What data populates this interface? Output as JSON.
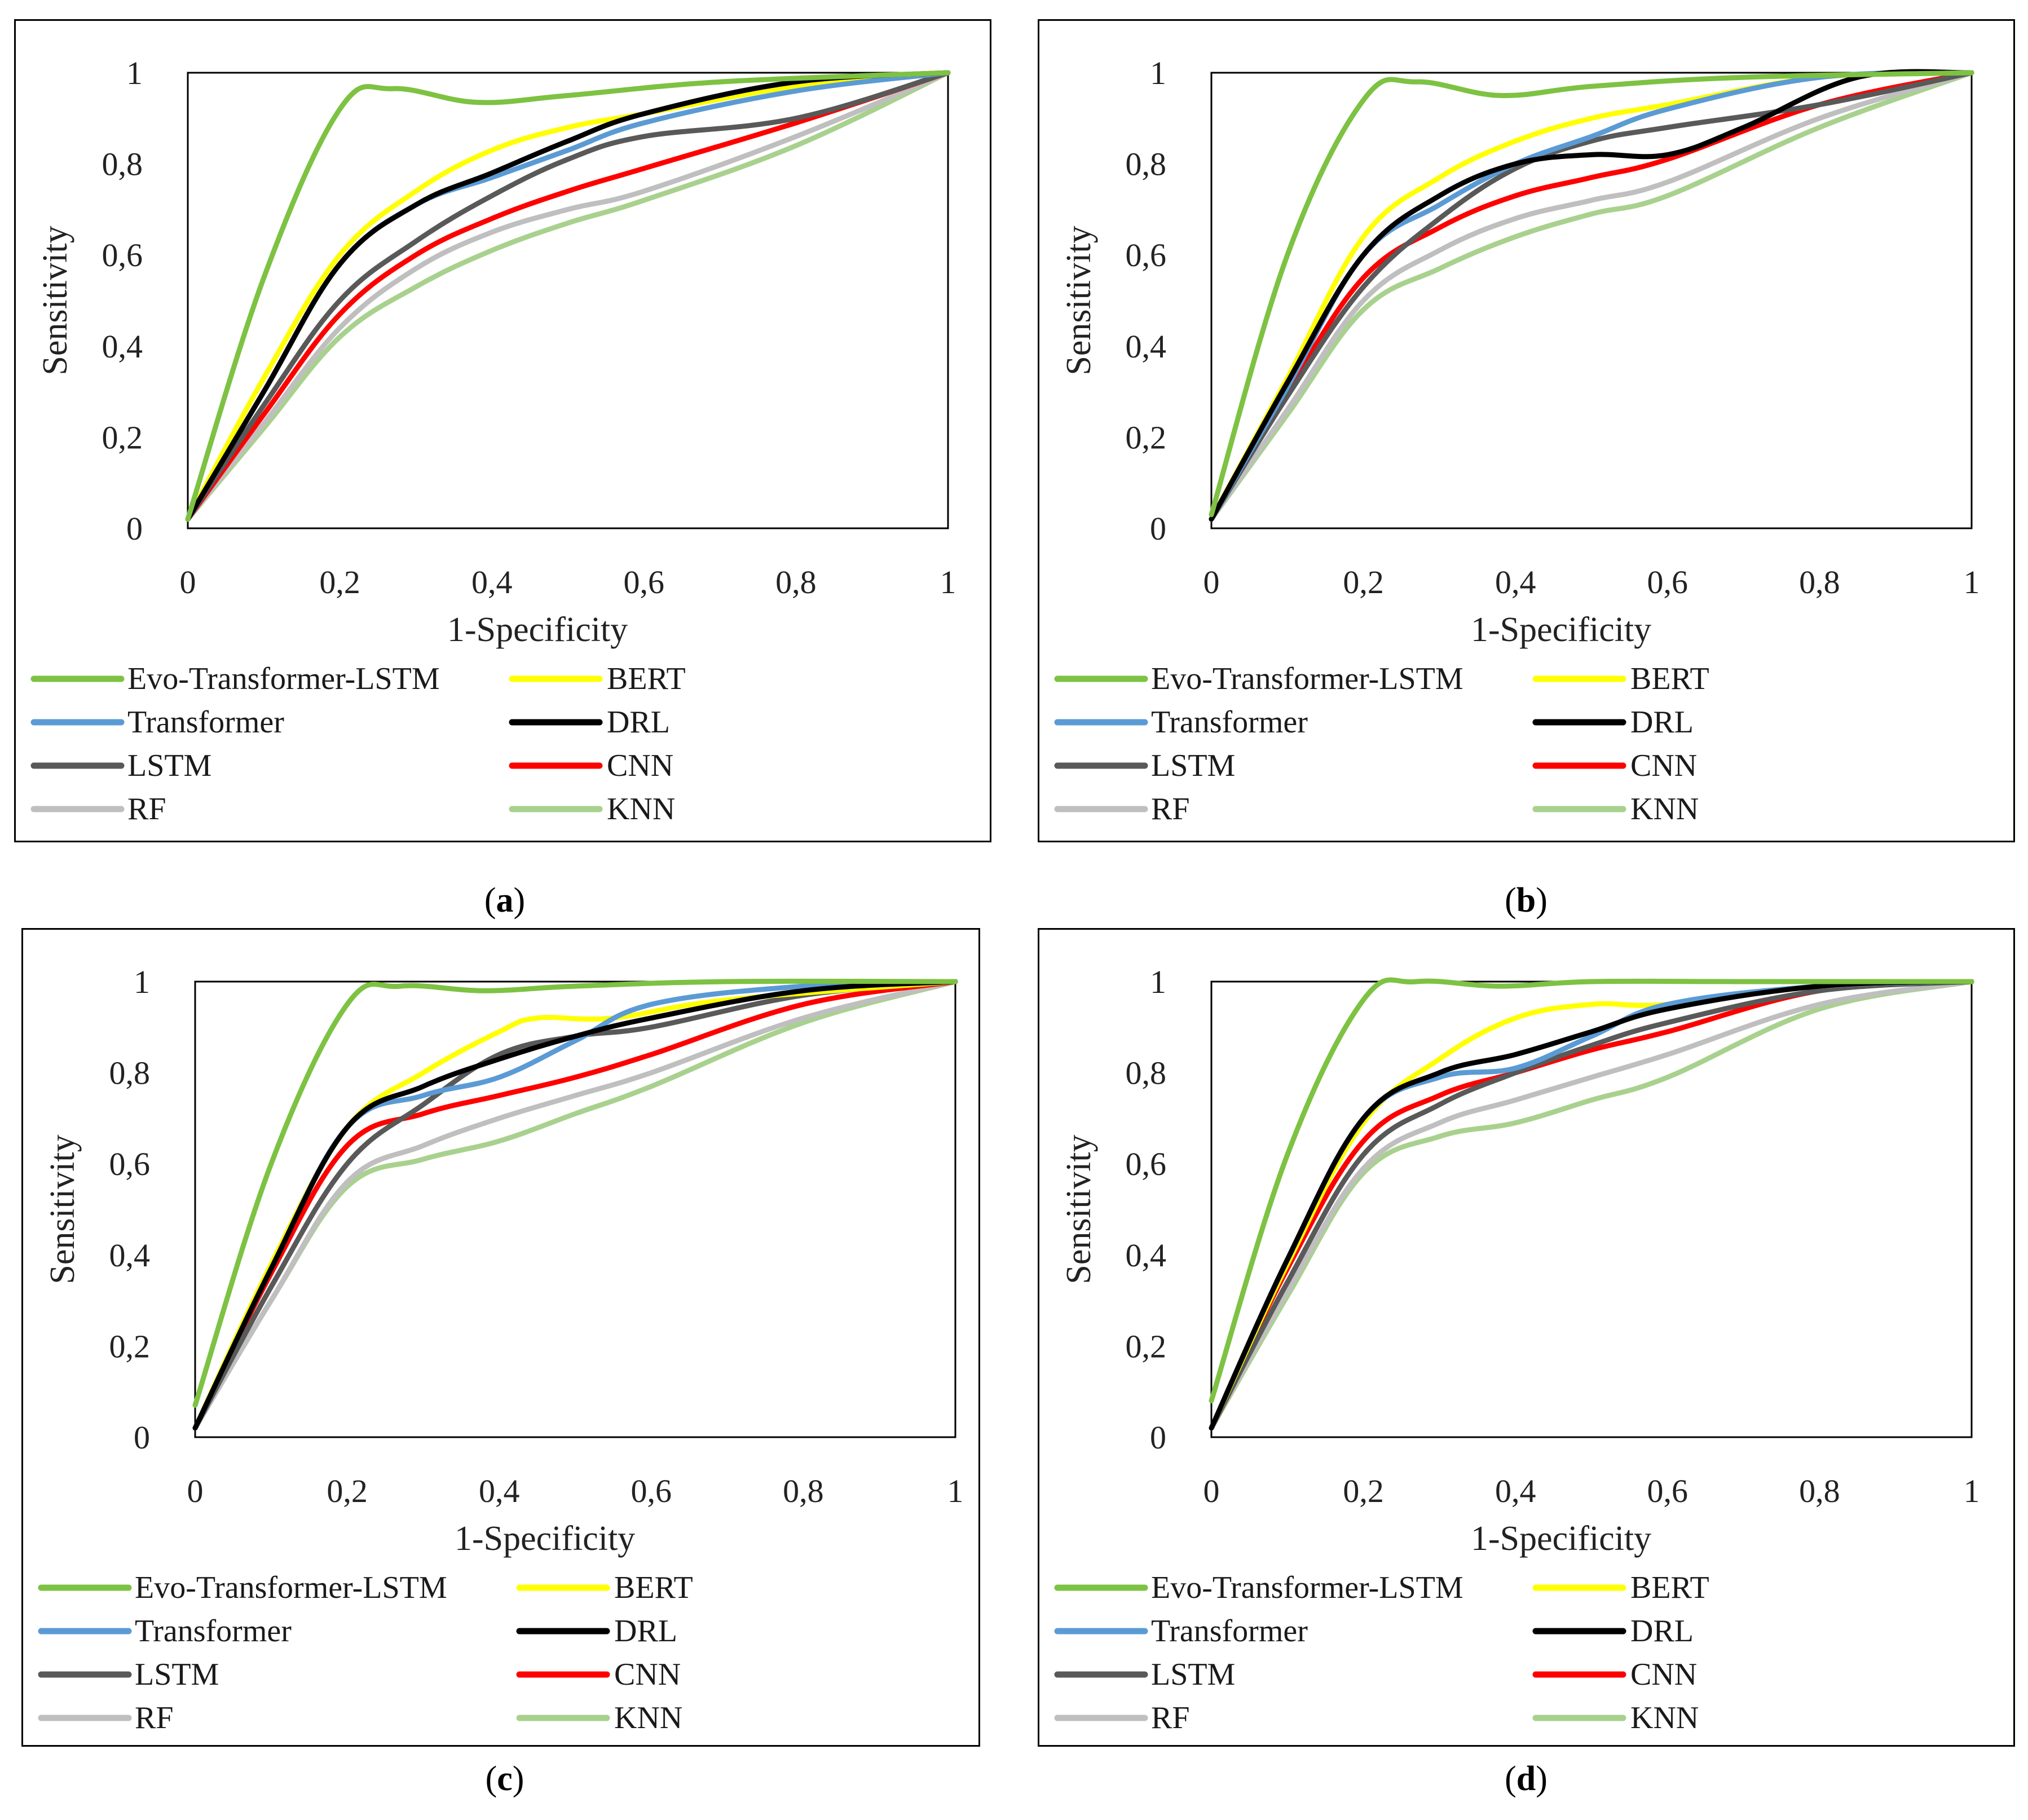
{
  "chart_data": [
    {
      "panel": "a",
      "type": "line",
      "caption_open": "(",
      "caption_letter": "a",
      "caption_close": ")",
      "xlabel": "1-Specificity",
      "ylabel": "Sensitivity",
      "xlim": [
        0,
        1
      ],
      "ylim": [
        0,
        1
      ],
      "xticks": [
        "0",
        "0,2",
        "0,4",
        "0,6",
        "0,8",
        "1"
      ],
      "yticks": [
        "0",
        "0,2",
        "0,4",
        "0,6",
        "0,8",
        "1"
      ],
      "series": [
        {
          "name": "Evo-Transformer-LSTM",
          "color": "#7dc242",
          "x": [
            0,
            0.1,
            0.2,
            0.27,
            0.38,
            0.5,
            0.7,
            1
          ],
          "y": [
            0.02,
            0.55,
            0.92,
            0.965,
            0.935,
            0.95,
            0.98,
            1
          ]
        },
        {
          "name": "BERT",
          "color": "#ffff00",
          "x": [
            0,
            0.1,
            0.2,
            0.3,
            0.4,
            0.5,
            0.6,
            0.8,
            1
          ],
          "y": [
            0.02,
            0.33,
            0.6,
            0.74,
            0.83,
            0.88,
            0.91,
            0.97,
            1
          ]
        },
        {
          "name": "Transformer",
          "color": "#5b9bd5",
          "x": [
            0,
            0.1,
            0.2,
            0.3,
            0.4,
            0.5,
            0.6,
            0.8,
            1
          ],
          "y": [
            0.02,
            0.3,
            0.58,
            0.71,
            0.77,
            0.83,
            0.89,
            0.96,
            1
          ]
        },
        {
          "name": "DRL",
          "color": "#000000",
          "x": [
            0,
            0.1,
            0.2,
            0.3,
            0.4,
            0.5,
            0.6,
            0.8,
            1
          ],
          "y": [
            0.02,
            0.3,
            0.58,
            0.71,
            0.78,
            0.85,
            0.91,
            0.98,
            1
          ]
        },
        {
          "name": "LSTM",
          "color": "#595959",
          "x": [
            0,
            0.1,
            0.2,
            0.3,
            0.4,
            0.5,
            0.6,
            0.8,
            1
          ],
          "y": [
            0.02,
            0.27,
            0.5,
            0.63,
            0.73,
            0.81,
            0.86,
            0.9,
            1
          ]
        },
        {
          "name": "CNN",
          "color": "#ff0000",
          "x": [
            0,
            0.1,
            0.2,
            0.3,
            0.4,
            0.5,
            0.6,
            0.8,
            1
          ],
          "y": [
            0.02,
            0.25,
            0.47,
            0.6,
            0.68,
            0.74,
            0.79,
            0.89,
            1
          ]
        },
        {
          "name": "RF",
          "color": "#bfbfbf",
          "x": [
            0,
            0.1,
            0.2,
            0.3,
            0.4,
            0.5,
            0.6,
            0.8,
            1
          ],
          "y": [
            0.02,
            0.23,
            0.44,
            0.57,
            0.65,
            0.7,
            0.74,
            0.86,
            1
          ]
        },
        {
          "name": "KNN",
          "color": "#a9d18e",
          "x": [
            0,
            0.1,
            0.2,
            0.3,
            0.4,
            0.5,
            0.6,
            0.8,
            1
          ],
          "y": [
            0.02,
            0.22,
            0.42,
            0.53,
            0.61,
            0.67,
            0.72,
            0.84,
            1
          ]
        }
      ]
    },
    {
      "panel": "b",
      "type": "line",
      "caption_open": "(",
      "caption_letter": "b",
      "caption_close": ")",
      "xlabel": "1-Specificity",
      "ylabel": "Sensitivity",
      "xlim": [
        0,
        1
      ],
      "ylim": [
        0,
        1
      ],
      "xticks": [
        "0",
        "0,2",
        "0,4",
        "0,6",
        "0,8",
        "1"
      ],
      "yticks": [
        "0",
        "0,2",
        "0,4",
        "0,6",
        "0,8",
        "1"
      ],
      "series": [
        {
          "name": "Evo-Transformer-LSTM",
          "color": "#7dc242",
          "x": [
            0,
            0.1,
            0.2,
            0.27,
            0.38,
            0.5,
            0.7,
            1
          ],
          "y": [
            0.03,
            0.6,
            0.94,
            0.98,
            0.95,
            0.97,
            0.99,
            1
          ]
        },
        {
          "name": "BERT",
          "color": "#ffff00",
          "x": [
            0,
            0.1,
            0.2,
            0.3,
            0.4,
            0.5,
            0.6,
            0.8,
            1
          ],
          "y": [
            0.02,
            0.33,
            0.64,
            0.77,
            0.85,
            0.9,
            0.93,
            0.99,
            1
          ]
        },
        {
          "name": "Transformer",
          "color": "#5b9bd5",
          "x": [
            0,
            0.1,
            0.2,
            0.3,
            0.4,
            0.5,
            0.6,
            0.8,
            1
          ],
          "y": [
            0.02,
            0.31,
            0.6,
            0.71,
            0.8,
            0.86,
            0.92,
            0.99,
            1
          ]
        },
        {
          "name": "DRL",
          "color": "#000000",
          "x": [
            0,
            0.1,
            0.2,
            0.3,
            0.4,
            0.5,
            0.6,
            0.7,
            0.85,
            1
          ],
          "y": [
            0.02,
            0.32,
            0.6,
            0.73,
            0.8,
            0.82,
            0.82,
            0.88,
            0.99,
            1
          ]
        },
        {
          "name": "LSTM",
          "color": "#595959",
          "x": [
            0,
            0.1,
            0.2,
            0.3,
            0.4,
            0.5,
            0.6,
            0.8,
            1
          ],
          "y": [
            0.02,
            0.29,
            0.53,
            0.68,
            0.79,
            0.85,
            0.88,
            0.93,
            1
          ]
        },
        {
          "name": "CNN",
          "color": "#ff0000",
          "x": [
            0,
            0.1,
            0.2,
            0.3,
            0.4,
            0.5,
            0.6,
            0.8,
            1
          ],
          "y": [
            0.02,
            0.3,
            0.55,
            0.66,
            0.73,
            0.77,
            0.81,
            0.93,
            1
          ]
        },
        {
          "name": "RF",
          "color": "#bfbfbf",
          "x": [
            0,
            0.1,
            0.2,
            0.3,
            0.4,
            0.5,
            0.6,
            0.8,
            1
          ],
          "y": [
            0.02,
            0.26,
            0.5,
            0.61,
            0.68,
            0.72,
            0.76,
            0.9,
            1
          ]
        },
        {
          "name": "KNN",
          "color": "#a9d18e",
          "x": [
            0,
            0.1,
            0.2,
            0.3,
            0.4,
            0.5,
            0.6,
            0.8,
            1
          ],
          "y": [
            0.02,
            0.25,
            0.48,
            0.57,
            0.64,
            0.69,
            0.73,
            0.88,
            1
          ]
        }
      ]
    },
    {
      "panel": "c",
      "type": "line",
      "caption_open": "(",
      "caption_letter": "c",
      "caption_close": ")",
      "xlabel": "1-Specificity",
      "ylabel": "Sensitivity",
      "xlim": [
        0,
        1
      ],
      "ylim": [
        0,
        1
      ],
      "xticks": [
        "0",
        "0,2",
        "0,4",
        "0,6",
        "0,8",
        "1"
      ],
      "yticks": [
        "0",
        "0,2",
        "0,4",
        "0,6",
        "0,8",
        "1"
      ],
      "series": [
        {
          "name": "Evo-Transformer-LSTM",
          "color": "#7dc242",
          "x": [
            0,
            0.1,
            0.2,
            0.27,
            0.38,
            0.5,
            0.7,
            1
          ],
          "y": [
            0.07,
            0.6,
            0.95,
            0.99,
            0.98,
            0.99,
            1,
            1
          ]
        },
        {
          "name": "BERT",
          "color": "#ffff00",
          "x": [
            0,
            0.1,
            0.2,
            0.3,
            0.4,
            0.45,
            0.55,
            0.7,
            1
          ],
          "y": [
            0.02,
            0.38,
            0.68,
            0.8,
            0.89,
            0.92,
            0.92,
            0.96,
            1
          ]
        },
        {
          "name": "Transformer",
          "color": "#5b9bd5",
          "x": [
            0,
            0.1,
            0.2,
            0.3,
            0.4,
            0.5,
            0.6,
            0.8,
            1
          ],
          "y": [
            0.02,
            0.37,
            0.68,
            0.75,
            0.79,
            0.87,
            0.95,
            0.99,
            1
          ]
        },
        {
          "name": "DRL",
          "color": "#000000",
          "x": [
            0,
            0.1,
            0.2,
            0.3,
            0.4,
            0.5,
            0.6,
            0.8,
            1
          ],
          "y": [
            0.02,
            0.37,
            0.68,
            0.77,
            0.83,
            0.88,
            0.92,
            0.98,
            1
          ]
        },
        {
          "name": "LSTM",
          "color": "#595959",
          "x": [
            0,
            0.1,
            0.2,
            0.3,
            0.4,
            0.5,
            0.6,
            0.8,
            1
          ],
          "y": [
            0.02,
            0.33,
            0.6,
            0.73,
            0.84,
            0.88,
            0.9,
            0.97,
            1
          ]
        },
        {
          "name": "CNN",
          "color": "#ff0000",
          "x": [
            0,
            0.1,
            0.2,
            0.3,
            0.4,
            0.5,
            0.6,
            0.8,
            1
          ],
          "y": [
            0.02,
            0.36,
            0.64,
            0.71,
            0.75,
            0.79,
            0.84,
            0.95,
            1
          ]
        },
        {
          "name": "RF",
          "color": "#bfbfbf",
          "x": [
            0,
            0.1,
            0.2,
            0.3,
            0.4,
            0.5,
            0.6,
            0.8,
            1
          ],
          "y": [
            0.02,
            0.3,
            0.56,
            0.64,
            0.7,
            0.75,
            0.8,
            0.92,
            1
          ]
        },
        {
          "name": "KNN",
          "color": "#a9d18e",
          "x": [
            0,
            0.1,
            0.2,
            0.3,
            0.4,
            0.5,
            0.6,
            0.8,
            1
          ],
          "y": [
            0.02,
            0.3,
            0.55,
            0.61,
            0.65,
            0.71,
            0.77,
            0.91,
            1
          ]
        }
      ]
    },
    {
      "panel": "d",
      "type": "line",
      "caption_open": "(",
      "caption_letter": "d",
      "caption_close": ")",
      "xlabel": "1-Specificity",
      "ylabel": "Sensitivity",
      "xlim": [
        0,
        1
      ],
      "ylim": [
        0,
        1
      ],
      "xticks": [
        "0",
        "0,2",
        "0,4",
        "0,6",
        "0,8",
        "1"
      ],
      "yticks": [
        "0",
        "0,2",
        "0,4",
        "0,6",
        "0,8",
        "1"
      ],
      "series": [
        {
          "name": "Evo-Transformer-LSTM",
          "color": "#7dc242",
          "x": [
            0,
            0.1,
            0.2,
            0.27,
            0.38,
            0.5,
            0.7,
            1
          ],
          "y": [
            0.08,
            0.62,
            0.96,
            1,
            0.99,
            1,
            1,
            1
          ]
        },
        {
          "name": "BERT",
          "color": "#ffff00",
          "x": [
            0,
            0.1,
            0.2,
            0.3,
            0.4,
            0.5,
            0.6,
            0.8,
            1
          ],
          "y": [
            0.02,
            0.38,
            0.69,
            0.83,
            0.92,
            0.95,
            0.95,
            0.99,
            1
          ]
        },
        {
          "name": "Transformer",
          "color": "#5b9bd5",
          "x": [
            0,
            0.1,
            0.2,
            0.3,
            0.4,
            0.5,
            0.6,
            0.8,
            1
          ],
          "y": [
            0.02,
            0.39,
            0.7,
            0.79,
            0.81,
            0.88,
            0.95,
            0.99,
            1
          ]
        },
        {
          "name": "DRL",
          "color": "#000000",
          "x": [
            0,
            0.1,
            0.2,
            0.3,
            0.4,
            0.5,
            0.6,
            0.8,
            1
          ],
          "y": [
            0.02,
            0.39,
            0.7,
            0.8,
            0.84,
            0.89,
            0.94,
            0.99,
            1
          ]
        },
        {
          "name": "LSTM",
          "color": "#595959",
          "x": [
            0,
            0.1,
            0.2,
            0.3,
            0.4,
            0.5,
            0.6,
            0.8,
            1
          ],
          "y": [
            0.02,
            0.34,
            0.62,
            0.73,
            0.8,
            0.86,
            0.91,
            0.98,
            1
          ]
        },
        {
          "name": "CNN",
          "color": "#ff0000",
          "x": [
            0,
            0.1,
            0.2,
            0.3,
            0.4,
            0.5,
            0.6,
            0.8,
            1
          ],
          "y": [
            0.02,
            0.37,
            0.65,
            0.75,
            0.8,
            0.85,
            0.89,
            0.98,
            1
          ]
        },
        {
          "name": "RF",
          "color": "#bfbfbf",
          "x": [
            0,
            0.1,
            0.2,
            0.3,
            0.4,
            0.5,
            0.6,
            0.8,
            1
          ],
          "y": [
            0.02,
            0.32,
            0.59,
            0.69,
            0.74,
            0.79,
            0.84,
            0.95,
            1
          ]
        },
        {
          "name": "KNN",
          "color": "#a9d18e",
          "x": [
            0,
            0.1,
            0.2,
            0.3,
            0.4,
            0.5,
            0.6,
            0.8,
            1
          ],
          "y": [
            0.02,
            0.31,
            0.58,
            0.66,
            0.69,
            0.74,
            0.79,
            0.94,
            1
          ]
        }
      ]
    }
  ]
}
